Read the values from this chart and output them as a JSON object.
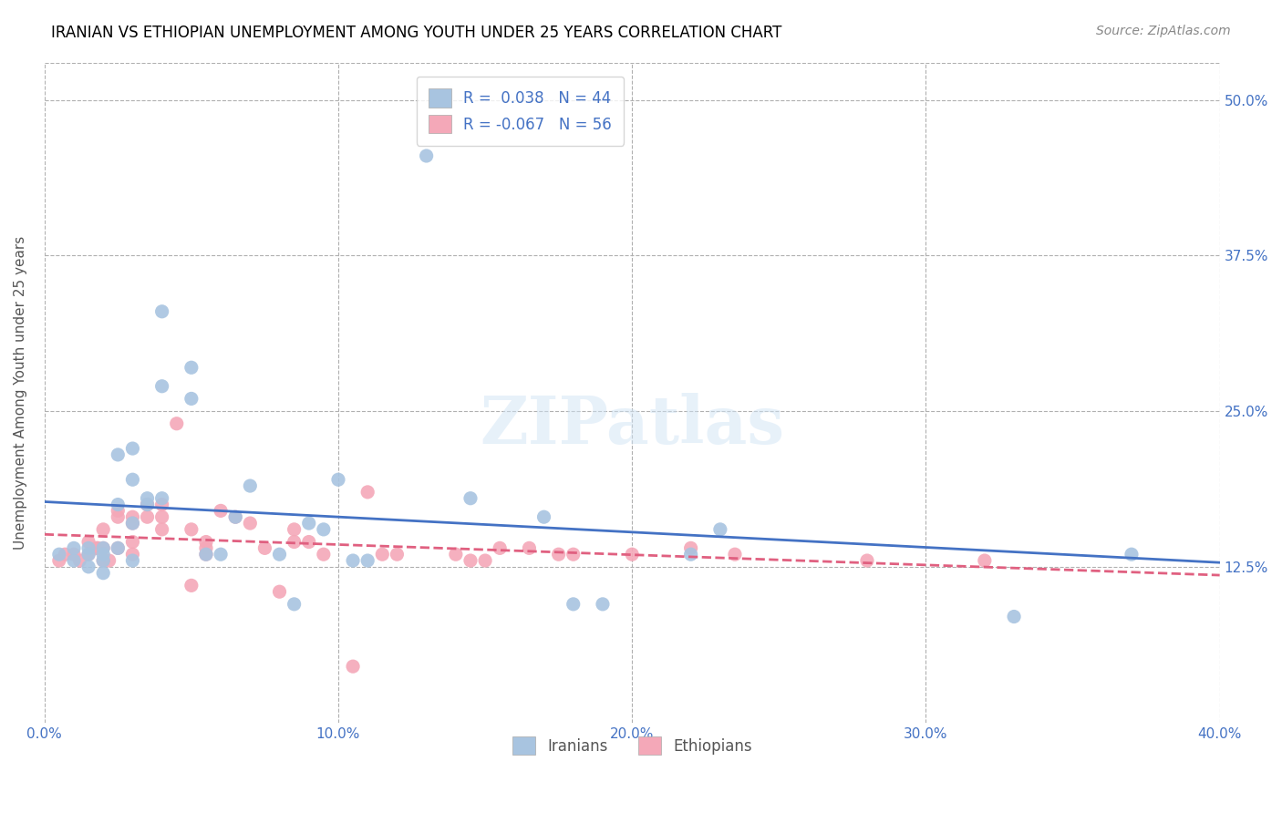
{
  "title": "IRANIAN VS ETHIOPIAN UNEMPLOYMENT AMONG YOUTH UNDER 25 YEARS CORRELATION CHART",
  "source": "Source: ZipAtlas.com",
  "ylabel": "Unemployment Among Youth under 25 years",
  "xlabel_ticks": [
    "0.0%",
    "10.0%",
    "20.0%",
    "30.0%",
    "40.0%"
  ],
  "xlabel_vals": [
    0.0,
    0.1,
    0.2,
    0.3,
    0.4
  ],
  "ylabel_ticks": [
    "12.5%",
    "25.0%",
    "37.5%",
    "50.0%"
  ],
  "ylabel_vals": [
    0.125,
    0.25,
    0.375,
    0.5
  ],
  "xlim": [
    0.0,
    0.4
  ],
  "ylim": [
    0.0,
    0.53
  ],
  "iranian_R": 0.038,
  "iranian_N": 44,
  "ethiopian_R": -0.067,
  "ethiopian_N": 56,
  "iranian_color": "#a8c4e0",
  "ethiopian_color": "#f4a8b8",
  "iranian_line_color": "#4472c4",
  "ethiopian_line_color": "#e06080",
  "watermark": "ZIPatlas",
  "iranians_x": [
    0.005,
    0.01,
    0.01,
    0.015,
    0.015,
    0.015,
    0.02,
    0.02,
    0.02,
    0.02,
    0.025,
    0.025,
    0.025,
    0.03,
    0.03,
    0.03,
    0.03,
    0.035,
    0.035,
    0.04,
    0.04,
    0.04,
    0.05,
    0.05,
    0.055,
    0.06,
    0.065,
    0.07,
    0.08,
    0.085,
    0.09,
    0.095,
    0.1,
    0.105,
    0.11,
    0.13,
    0.145,
    0.17,
    0.18,
    0.19,
    0.22,
    0.23,
    0.33,
    0.37
  ],
  "iranians_y": [
    0.135,
    0.13,
    0.14,
    0.14,
    0.135,
    0.125,
    0.14,
    0.135,
    0.13,
    0.12,
    0.215,
    0.175,
    0.14,
    0.22,
    0.195,
    0.16,
    0.13,
    0.18,
    0.175,
    0.33,
    0.27,
    0.18,
    0.285,
    0.26,
    0.135,
    0.135,
    0.165,
    0.19,
    0.135,
    0.095,
    0.16,
    0.155,
    0.195,
    0.13,
    0.13,
    0.455,
    0.18,
    0.165,
    0.095,
    0.095,
    0.135,
    0.155,
    0.085,
    0.135
  ],
  "ethiopians_x": [
    0.005,
    0.007,
    0.01,
    0.012,
    0.015,
    0.015,
    0.018,
    0.018,
    0.02,
    0.02,
    0.02,
    0.022,
    0.025,
    0.025,
    0.025,
    0.03,
    0.03,
    0.03,
    0.03,
    0.035,
    0.035,
    0.035,
    0.04,
    0.04,
    0.04,
    0.045,
    0.05,
    0.05,
    0.055,
    0.055,
    0.055,
    0.06,
    0.065,
    0.07,
    0.075,
    0.08,
    0.085,
    0.085,
    0.09,
    0.095,
    0.105,
    0.11,
    0.115,
    0.12,
    0.14,
    0.145,
    0.15,
    0.155,
    0.165,
    0.175,
    0.18,
    0.2,
    0.22,
    0.235,
    0.28,
    0.32
  ],
  "ethiopians_y": [
    0.13,
    0.135,
    0.135,
    0.13,
    0.145,
    0.135,
    0.14,
    0.14,
    0.155,
    0.14,
    0.13,
    0.13,
    0.17,
    0.165,
    0.14,
    0.165,
    0.16,
    0.145,
    0.135,
    0.175,
    0.175,
    0.165,
    0.175,
    0.165,
    0.155,
    0.24,
    0.155,
    0.11,
    0.145,
    0.14,
    0.135,
    0.17,
    0.165,
    0.16,
    0.14,
    0.105,
    0.155,
    0.145,
    0.145,
    0.135,
    0.045,
    0.185,
    0.135,
    0.135,
    0.135,
    0.13,
    0.13,
    0.14,
    0.14,
    0.135,
    0.135,
    0.135,
    0.14,
    0.135,
    0.13,
    0.13
  ]
}
